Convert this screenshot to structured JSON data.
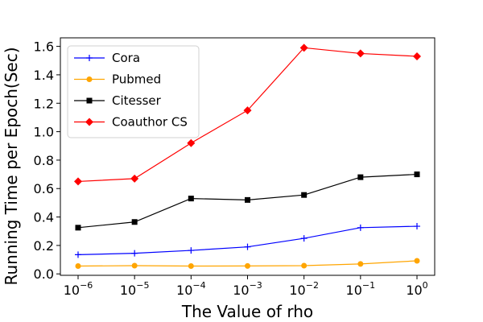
{
  "chart_data": {
    "type": "line",
    "xlabel": "The Value of rho",
    "ylabel": "Running Time per Epoch(Sec)",
    "x_scale": "log",
    "x_values": [
      1e-06,
      1e-05,
      0.0001,
      0.001,
      0.01,
      0.1,
      1
    ],
    "x_tick_labels": [
      {
        "base": "10",
        "exp": "−6"
      },
      {
        "base": "10",
        "exp": "−5"
      },
      {
        "base": "10",
        "exp": "−4"
      },
      {
        "base": "10",
        "exp": "−3"
      },
      {
        "base": "10",
        "exp": "−2"
      },
      {
        "base": "10",
        "exp": "−1"
      },
      {
        "base": "10",
        "exp": "0"
      }
    ],
    "ylim": [
      -0.01,
      1.66
    ],
    "y_ticks": [
      "0.0",
      "0.2",
      "0.4",
      "0.6",
      "0.8",
      "1.0",
      "1.2",
      "1.4",
      "1.6"
    ],
    "grid": false,
    "legend_position": "top-left",
    "series": [
      {
        "name": "Cora",
        "color": "#0000ff",
        "marker": "plus",
        "values": [
          0.135,
          0.145,
          0.165,
          0.19,
          0.25,
          0.325,
          0.335
        ]
      },
      {
        "name": "Pubmed",
        "color": "#ffa500",
        "marker": "circle",
        "values": [
          0.055,
          0.058,
          0.055,
          0.056,
          0.058,
          0.07,
          0.092
        ]
      },
      {
        "name": "Citesser",
        "color": "#000000",
        "marker": "square",
        "values": [
          0.325,
          0.365,
          0.53,
          0.52,
          0.555,
          0.68,
          0.7
        ]
      },
      {
        "name": "Coauthor CS",
        "color": "#ff0000",
        "marker": "diamond",
        "values": [
          0.65,
          0.67,
          0.92,
          1.15,
          1.59,
          1.55,
          1.53
        ]
      }
    ]
  }
}
